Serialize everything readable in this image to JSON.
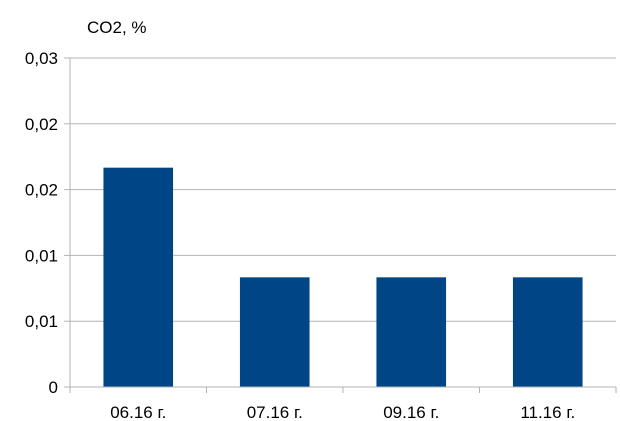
{
  "chart_data": {
    "type": "bar",
    "ylabel": "CO2, %",
    "categories": [
      "06.16 г.",
      "07.16 г.",
      "09.16 г.",
      "11.16 г."
    ],
    "values": [
      0.02,
      0.01,
      0.01,
      0.01
    ],
    "yticks": [
      "0",
      "0,01",
      "0,01",
      "0,02",
      "0,02",
      "0,03"
    ],
    "ylim": [
      0,
      0.03
    ],
    "grid": true,
    "bar_color": "#004586"
  }
}
